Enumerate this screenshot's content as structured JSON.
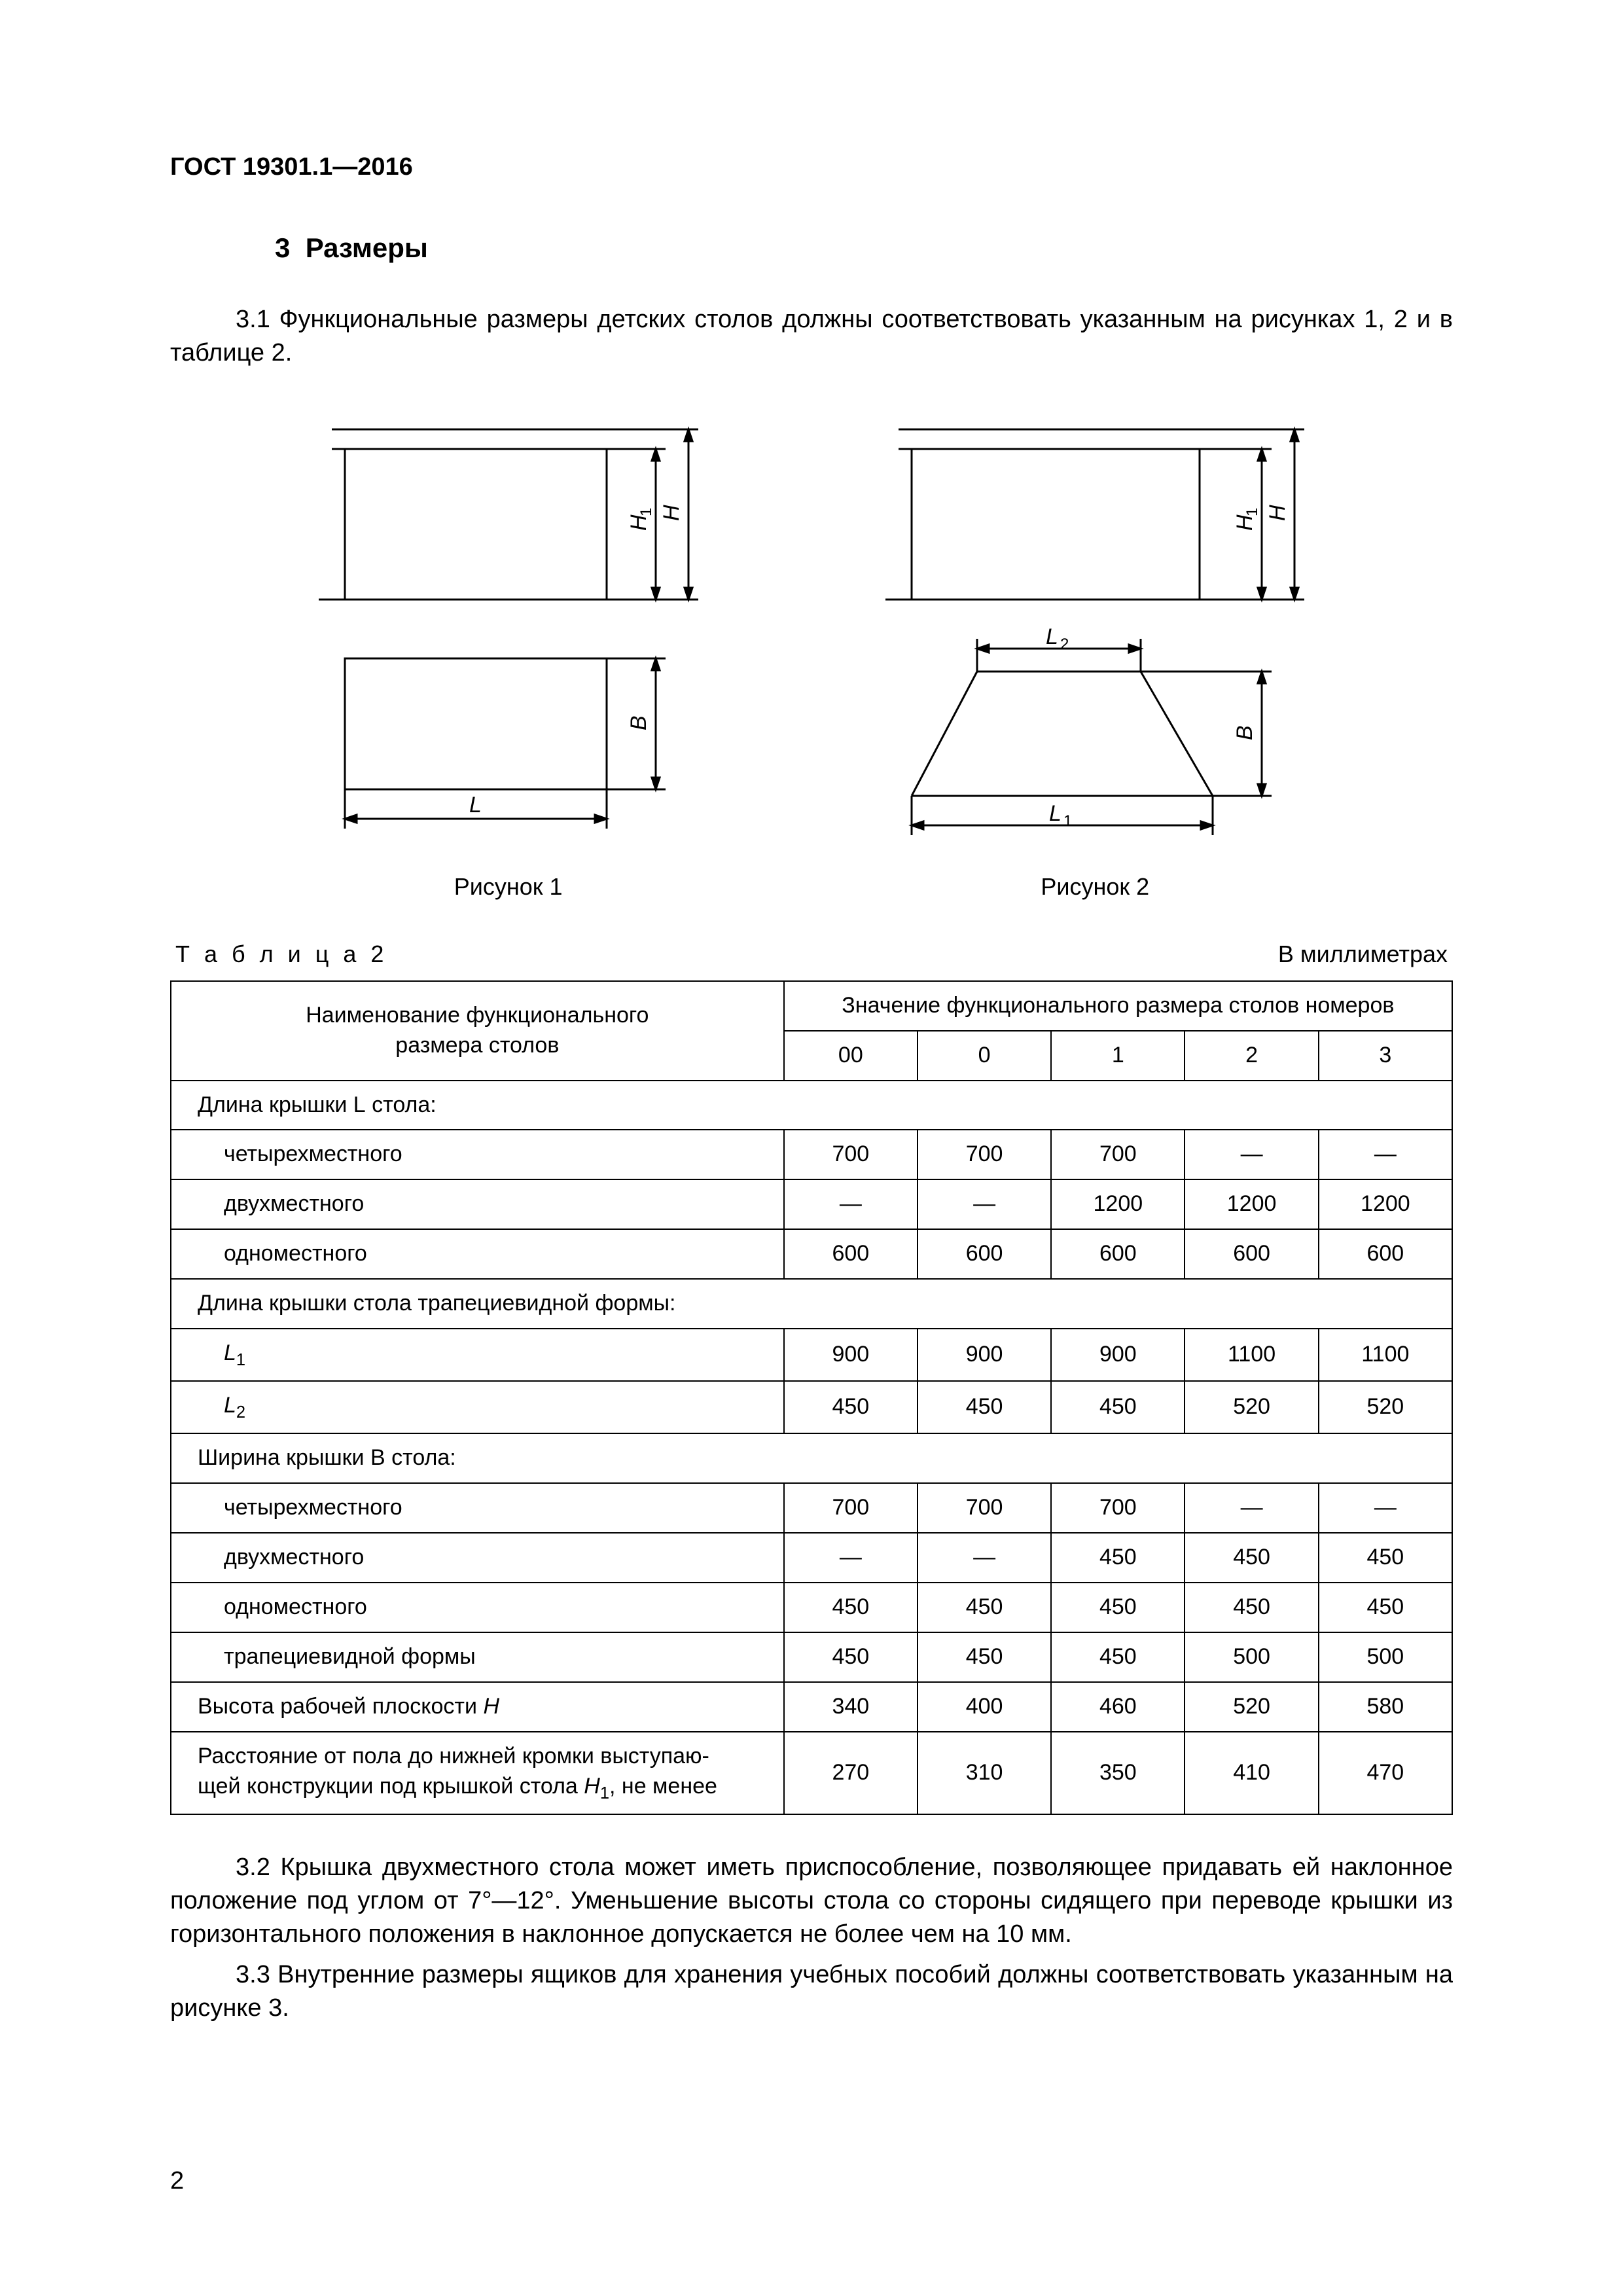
{
  "header": {
    "standard": "ГОСТ 19301.1—2016"
  },
  "section": {
    "number": "3",
    "title": "Размеры"
  },
  "p31": "3.1  Функциональные размеры детских столов должны соответствовать указанным на рисунках 1, 2 и в таблице 2.",
  "figures": {
    "fig1": {
      "caption": "Рисунок 1",
      "labels": {
        "H1": "H",
        "H1sub": "1",
        "H": "H",
        "B": "B",
        "L": "L"
      }
    },
    "fig2": {
      "caption": "Рисунок 2",
      "labels": {
        "H1": "H",
        "H1sub": "1",
        "H": "H",
        "B": "B",
        "L1": "L",
        "L1sub": "1",
        "L2": "L",
        "L2sub": "2"
      }
    },
    "stroke": "#000000",
    "stroke_width": 3
  },
  "table2": {
    "label": "Т а б л и ц а  2",
    "units": "В миллиметрах",
    "header": {
      "col1_l1": "Наименование функционального",
      "col1_l2": "размера столов",
      "col2": "Значение функционального размера столов номеров",
      "nums": [
        "00",
        "0",
        "1",
        "2",
        "3"
      ]
    },
    "rows": [
      {
        "type": "group",
        "label": "Длина крышки L стола:",
        "italic_idx": 14
      },
      {
        "type": "sub",
        "label": "четырехместного",
        "vals": [
          "700",
          "700",
          "700",
          "—",
          "—"
        ]
      },
      {
        "type": "sub",
        "label": "двухместного",
        "vals": [
          "—",
          "—",
          "1200",
          "1200",
          "1200"
        ]
      },
      {
        "type": "sub",
        "label": "одноместного",
        "vals": [
          "600",
          "600",
          "600",
          "600",
          "600"
        ]
      },
      {
        "type": "group",
        "label": "Длина крышки стола трапециевидной формы:"
      },
      {
        "type": "sub",
        "label_html": "L1",
        "vals": [
          "900",
          "900",
          "900",
          "1100",
          "1100"
        ]
      },
      {
        "type": "sub",
        "label_html": "L2",
        "vals": [
          "450",
          "450",
          "450",
          "520",
          "520"
        ]
      },
      {
        "type": "group",
        "label": "Ширина крышки B стола:",
        "italic_idx": 15
      },
      {
        "type": "sub",
        "label": "четырехместного",
        "vals": [
          "700",
          "700",
          "700",
          "—",
          "—"
        ]
      },
      {
        "type": "sub",
        "label": "двухместного",
        "vals": [
          "—",
          "—",
          "450",
          "450",
          "450"
        ]
      },
      {
        "type": "sub",
        "label": "одноместного",
        "vals": [
          "450",
          "450",
          "450",
          "450",
          "450"
        ]
      },
      {
        "type": "sub",
        "label": "трапециевидной формы",
        "vals": [
          "450",
          "450",
          "450",
          "500",
          "500"
        ]
      },
      {
        "type": "row",
        "label": "Высота рабочей плоскости H",
        "italic_last": true,
        "vals": [
          "340",
          "400",
          "460",
          "520",
          "580"
        ]
      },
      {
        "type": "row",
        "label_multiline": [
          "Расстояние от пола до нижней кромки выступаю-",
          "щей конструкции под крышкой стола H₁, не менее"
        ],
        "vals": [
          "270",
          "310",
          "350",
          "410",
          "470"
        ]
      }
    ]
  },
  "p32": "3.2 Крышка двухместного стола может иметь приспособление, позволяющее придавать ей наклонное положение под углом от 7°—12°. Уменьшение высоты стола со стороны сидящего при переводе крышки из горизонтального положения в наклонное допускается не более чем на 10 мм.",
  "p33": "3.3 Внутренние размеры ящиков для хранения учебных пособий должны соответствовать указанным на рисунке 3.",
  "page_number": "2"
}
